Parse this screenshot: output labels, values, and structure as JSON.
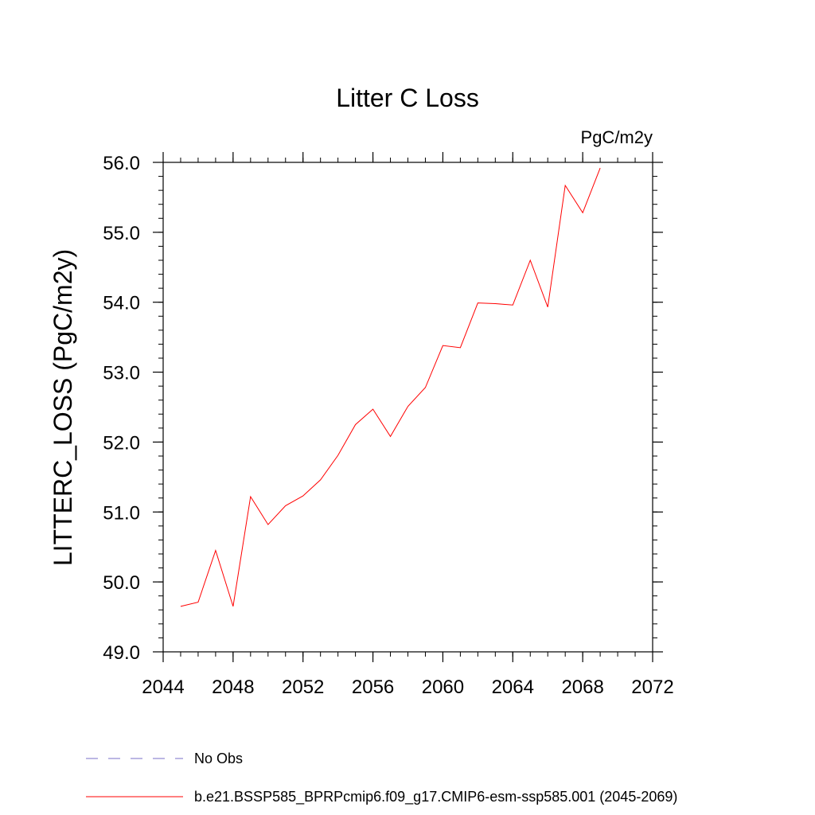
{
  "chart_data": {
    "type": "line",
    "title": "Litter C Loss",
    "units_label": "PgC/m2y",
    "xlabel": "",
    "ylabel": "LITTERC_LOSS  (PgC/m2y)",
    "xlim": [
      2044,
      2072
    ],
    "ylim": [
      49.0,
      56.0
    ],
    "xticks": [
      "2044",
      "2048",
      "2052",
      "2056",
      "2060",
      "2064",
      "2068",
      "2072"
    ],
    "yticks": [
      "49.0",
      "50.0",
      "51.0",
      "52.0",
      "53.0",
      "54.0",
      "55.0",
      "56.0"
    ],
    "grid": false,
    "legend_placement": "bottom",
    "series": [
      {
        "name": "b.e21.BSSP585_BPRPcmip6.f09_g17.CMIP6-esm-ssp585.001 (2045-2069)",
        "color": "#ff0000",
        "style": "solid",
        "x": [
          2045,
          2046,
          2047,
          2048,
          2049,
          2050,
          2051,
          2052,
          2053,
          2054,
          2055,
          2056,
          2057,
          2058,
          2059,
          2060,
          2061,
          2062,
          2063,
          2064,
          2065,
          2066,
          2067,
          2068,
          2069
        ],
        "y": [
          49.65,
          49.71,
          50.45,
          49.65,
          51.22,
          50.82,
          51.09,
          51.23,
          51.46,
          51.81,
          52.25,
          52.47,
          52.08,
          52.51,
          52.78,
          53.38,
          53.35,
          53.99,
          53.98,
          53.96,
          54.6,
          53.93,
          55.67,
          55.28,
          55.92
        ]
      }
    ],
    "legend": [
      {
        "label": "No Obs",
        "color": "#7a6fc8",
        "style": "dashed"
      },
      {
        "label": "b.e21.BSSP585_BPRPcmip6.f09_g17.CMIP6-esm-ssp585.001 (2045-2069)",
        "color": "#ff0000",
        "style": "solid"
      }
    ]
  }
}
